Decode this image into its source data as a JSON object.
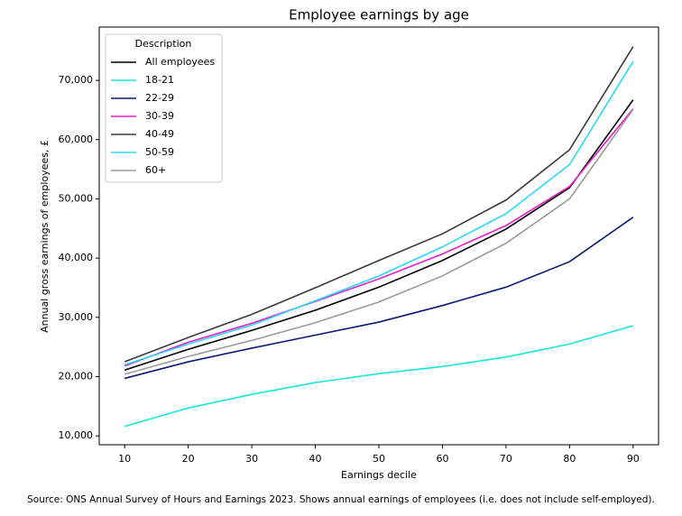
{
  "chart_data": {
    "type": "line",
    "title": "Employee earnings by age",
    "x_label": "Earnings decile",
    "y_label": "Annual gross earnings of employees, £",
    "source": "Source: ONS Annual Survey of Hours and Earnings 2023. Shows annual earnings of employees (i.e. does not include self-employed).",
    "legend_title": "Description",
    "legend_loc": "upper left",
    "x": [
      10,
      20,
      30,
      40,
      50,
      60,
      70,
      80,
      90
    ],
    "xlim": [
      6,
      94
    ],
    "xticks": [
      10,
      20,
      30,
      40,
      50,
      60,
      70,
      80,
      90
    ],
    "ylim": [
      8500,
      79000
    ],
    "yticks": [
      {
        "value": 10000,
        "label": "10,000"
      },
      {
        "value": 20000,
        "label": "20,000"
      },
      {
        "value": 30000,
        "label": "30,000"
      },
      {
        "value": 40000,
        "label": "40,000"
      },
      {
        "value": 50000,
        "label": "50,000"
      },
      {
        "value": 60000,
        "label": "60,000"
      },
      {
        "value": 70000,
        "label": "70,000"
      }
    ],
    "series": [
      {
        "name": "All employees",
        "color": "#000000",
        "values": [
          21100,
          24600,
          27800,
          31200,
          35100,
          39600,
          44900,
          51900,
          66700
        ]
      },
      {
        "name": "18-21",
        "color": "#14e8dc",
        "values": [
          11600,
          14700,
          17000,
          19000,
          20500,
          21700,
          23300,
          25500,
          28600
        ]
      },
      {
        "name": "22-29",
        "color": "#0a1a78",
        "values": [
          19700,
          22500,
          24800,
          27000,
          29200,
          32000,
          35100,
          39400,
          46900
        ]
      },
      {
        "name": "30-39",
        "color": "#e61ec8",
        "values": [
          21800,
          25800,
          29000,
          32700,
          36500,
          40700,
          45500,
          52100,
          65200
        ]
      },
      {
        "name": "40-49",
        "color": "#3a3a3a",
        "values": [
          22500,
          26600,
          30500,
          35000,
          39600,
          44100,
          49800,
          58300,
          75700
        ]
      },
      {
        "name": "50-59",
        "color": "#28d8f4",
        "values": [
          22000,
          25500,
          28700,
          32800,
          37000,
          41900,
          47500,
          55800,
          73200
        ]
      },
      {
        "name": "60+",
        "color": "#9a9a9a",
        "values": [
          20400,
          23400,
          26100,
          29100,
          32600,
          37000,
          42500,
          50000,
          65100
        ]
      }
    ]
  }
}
